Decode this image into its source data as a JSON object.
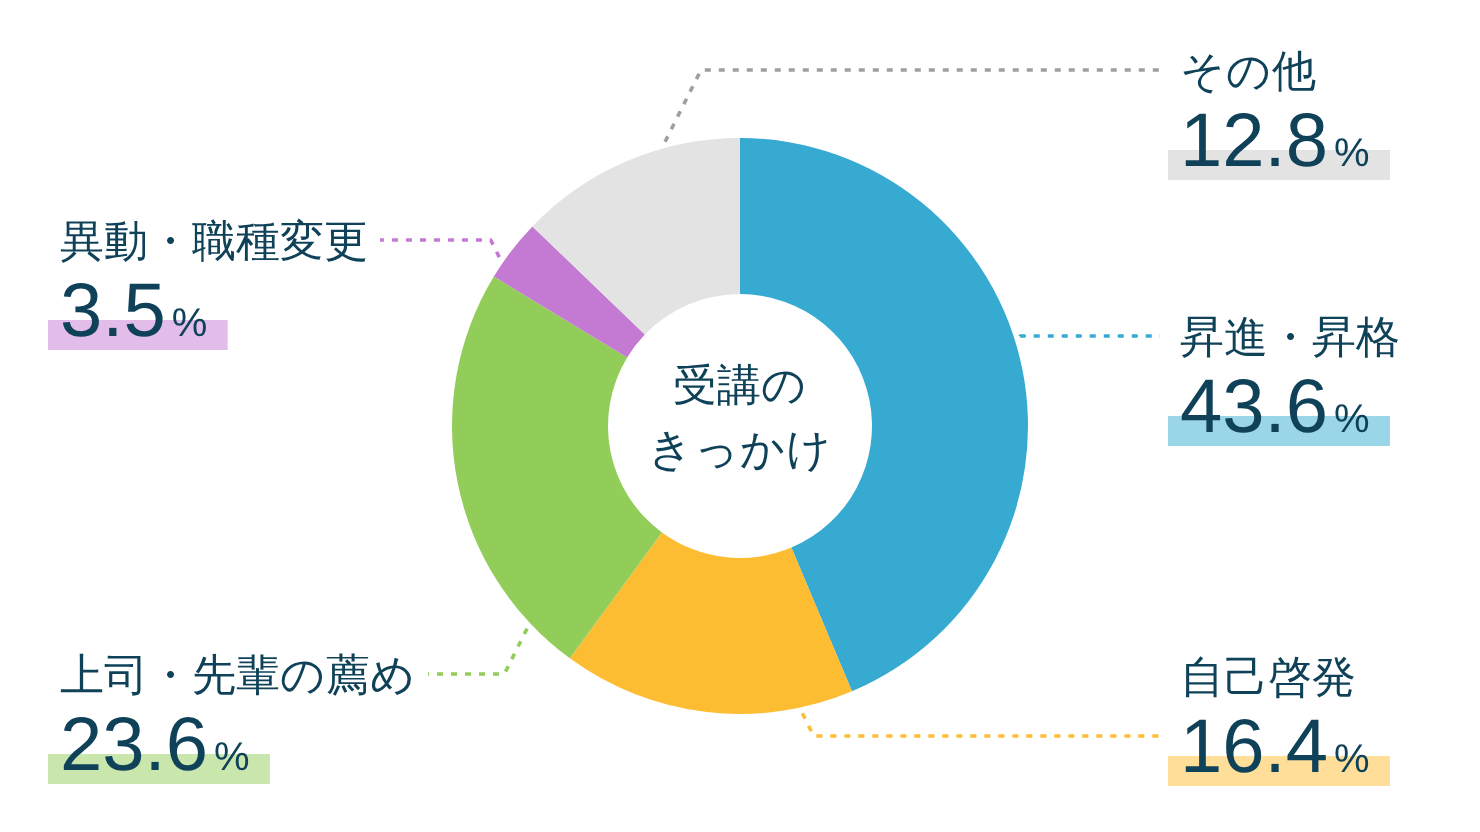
{
  "chart_data": {
    "type": "donut",
    "title": "受講のきっかけ",
    "categories": [
      "昇進・昇格",
      "自己啓発",
      "上司・先輩の薦め",
      "異動・職種変更",
      "その他"
    ],
    "values": [
      43.6,
      16.4,
      23.6,
      3.5,
      12.8
    ],
    "colors": [
      "#36aad1",
      "#fdbd33",
      "#92cd5a",
      "#c47ad2",
      "#e3e3e3"
    ],
    "value_labels": [
      "43.6%",
      "16.4%",
      "23.6%",
      "3.5%",
      "12.8%"
    ]
  }
}
